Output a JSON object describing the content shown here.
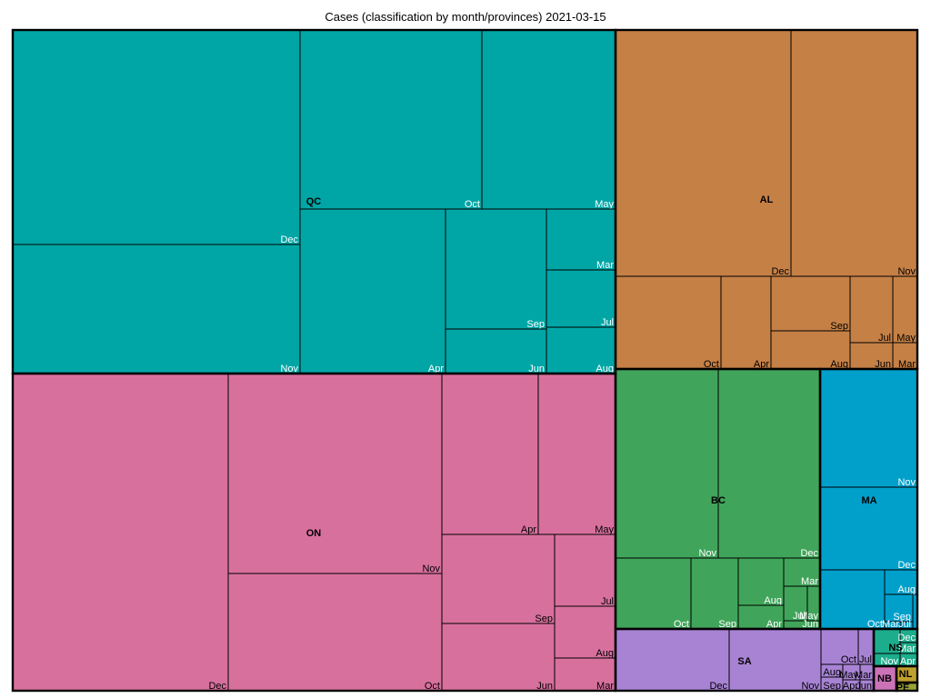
{
  "chart_data": {
    "type": "treemap",
    "title": "Cases (classification by month/provinces)  2021-03-15",
    "provinces": [
      {
        "name": "QC",
        "color": "#00A6A6",
        "months": [
          {
            "name": "Dec",
            "value": 54
          },
          {
            "name": "Nov",
            "value": 34
          },
          {
            "name": "Oct",
            "value": 31
          },
          {
            "name": "May",
            "value": 23
          },
          {
            "name": "Apr",
            "value": 28
          },
          {
            "name": "Sep",
            "value": 10
          },
          {
            "name": "Jun",
            "value": 4.2
          },
          {
            "name": "Mar",
            "value": 3.5
          },
          {
            "name": "Jul",
            "value": 3.4
          },
          {
            "name": "Aug",
            "value": 2.8
          }
        ]
      },
      {
        "name": "ON",
        "color": "#D8709E",
        "months": [
          {
            "name": "Dec",
            "value": 63
          },
          {
            "name": "Nov",
            "value": 39
          },
          {
            "name": "Oct",
            "value": 31
          },
          {
            "name": "Apr",
            "value": 16
          },
          {
            "name": "May",
            "value": 12
          },
          {
            "name": "Sep",
            "value": 9.5
          },
          {
            "name": "Jun",
            "value": 7.4
          },
          {
            "name": "Jul",
            "value": 4.8
          },
          {
            "name": "Aug",
            "value": 3.9
          },
          {
            "name": "Mar",
            "value": 2.5
          }
        ]
      },
      {
        "name": "AL",
        "color": "#C58046",
        "months": [
          {
            "name": "Dec",
            "value": 39
          },
          {
            "name": "Nov",
            "value": 28
          },
          {
            "name": "Oct",
            "value": 8.7
          },
          {
            "name": "Apr",
            "value": 4.2
          },
          {
            "name": "Sep",
            "value": 3.8
          },
          {
            "name": "Aug",
            "value": 3.0
          },
          {
            "name": "Jul",
            "value": 2.4
          },
          {
            "name": "Jun",
            "value": 1.0
          },
          {
            "name": "May",
            "value": 1.7
          },
          {
            "name": "Mar",
            "value": 1.0
          }
        ]
      },
      {
        "name": "BC",
        "color": "#40A55A",
        "months": [
          {
            "name": "Nov",
            "value": 17
          },
          {
            "name": "Dec",
            "value": 17
          },
          {
            "name": "Oct",
            "value": 4.6
          },
          {
            "name": "Sep",
            "value": 3.1
          },
          {
            "name": "Aug",
            "value": 2.1
          },
          {
            "name": "Apr",
            "value": 1.0
          },
          {
            "name": "Mar",
            "value": 1.3
          },
          {
            "name": "Jul",
            "value": 0.9
          },
          {
            "name": "May",
            "value": 0.6
          },
          {
            "name": "Jun",
            "value": 0.5
          }
        ]
      },
      {
        "name": "MA",
        "color": "#00A0CB",
        "months": [
          {
            "name": "Nov",
            "value": 9.4
          },
          {
            "name": "Dec",
            "value": 8.3
          },
          {
            "name": "Oct",
            "value": 4.5
          },
          {
            "name": "Aug",
            "value": 1.1
          },
          {
            "name": "Sep",
            "value": 0.9
          },
          {
            "name": "Mar",
            "value": 0.3
          },
          {
            "name": "Jul",
            "value": 0.3
          }
        ]
      },
      {
        "name": "SA",
        "color": "#A883D4",
        "months": [
          {
            "name": "Dec",
            "value": 5.6
          },
          {
            "name": "Nov",
            "value": 4.5
          },
          {
            "name": "Oct",
            "value": 1.9
          },
          {
            "name": "Jul",
            "value": 1.2
          },
          {
            "name": "Aug",
            "value": 0.7
          },
          {
            "name": "Sep",
            "value": 0.6
          },
          {
            "name": "May",
            "value": 0.6
          },
          {
            "name": "Apr",
            "value": 0.5
          },
          {
            "name": "Mar",
            "value": 0.4
          },
          {
            "name": "Jun",
            "value": 0.4
          }
        ]
      },
      {
        "name": "NS",
        "color": "#1CAD8C",
        "months": [
          {
            "name": "Dec",
            "value": 0.5
          },
          {
            "name": "Mar",
            "value": 0.5
          },
          {
            "name": "Nov",
            "value": 0.4
          },
          {
            "name": "Apr",
            "value": 0.4
          }
        ]
      },
      {
        "name": "NB",
        "color": "#CC73B8",
        "months": []
      },
      {
        "name": "NL",
        "color": "#BFA02E",
        "months": []
      },
      {
        "name": "PE",
        "color": "#9BA338",
        "months": []
      }
    ]
  }
}
